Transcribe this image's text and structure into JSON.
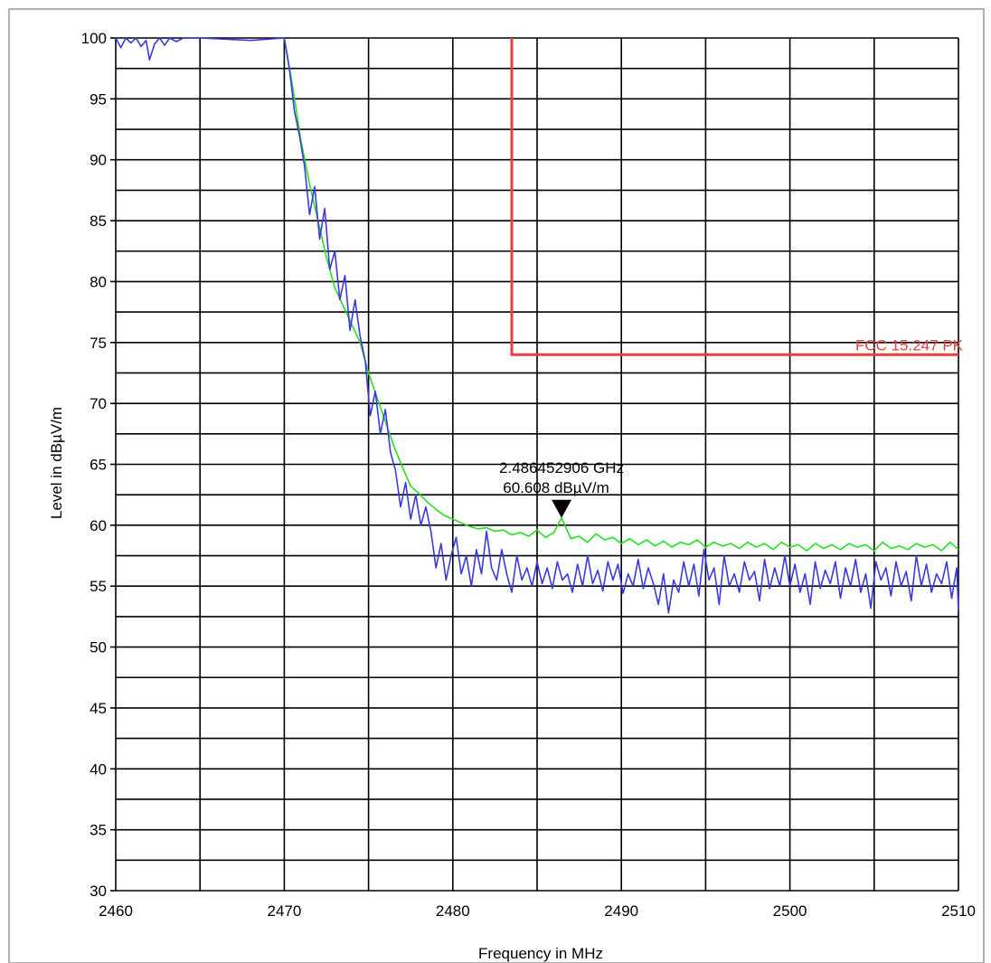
{
  "chart_data": {
    "type": "line",
    "xlabel": "Frequency in MHz",
    "ylabel": "Level in dBµV/m",
    "xlim": [
      2460,
      2510
    ],
    "ylim": [
      30,
      100
    ],
    "x_ticks": [
      2460,
      2470,
      2480,
      2490,
      2500,
      2510
    ],
    "y_ticks": [
      30,
      35,
      40,
      45,
      50,
      55,
      60,
      65,
      70,
      75,
      80,
      85,
      90,
      95,
      100
    ],
    "grid": true,
    "limit_line": {
      "label": "FCC 15.247 PK",
      "color": "#e8403c",
      "points": [
        [
          2483.5,
          100
        ],
        [
          2483.5,
          74
        ],
        [
          2510,
          74
        ]
      ]
    },
    "marker": {
      "frequency_text": "2.486452906 GHz",
      "level_text": "60.608 dBµV/m",
      "x": 2486.45,
      "y": 60.6
    },
    "series": [
      {
        "color": "#22e022",
        "points": [
          [
            2470.0,
            100
          ],
          [
            2470.5,
            96
          ],
          [
            2471.0,
            91.5
          ],
          [
            2471.5,
            88
          ],
          [
            2472.0,
            85
          ],
          [
            2472.5,
            82
          ],
          [
            2473.0,
            79.5
          ],
          [
            2473.5,
            78
          ],
          [
            2474.0,
            76.5
          ],
          [
            2474.5,
            75
          ],
          [
            2475.0,
            72.5
          ],
          [
            2475.5,
            70.5
          ],
          [
            2476.0,
            68.5
          ],
          [
            2476.5,
            66.5
          ],
          [
            2477.0,
            64.8
          ],
          [
            2477.5,
            63.2
          ],
          [
            2478.0,
            62.6
          ],
          [
            2478.5,
            61.9
          ],
          [
            2479.0,
            61.3
          ],
          [
            2479.5,
            60.8
          ],
          [
            2480.0,
            60.5
          ],
          [
            2480.5,
            60.2
          ],
          [
            2481.0,
            59.9
          ],
          [
            2481.5,
            59.7
          ],
          [
            2482.0,
            59.8
          ],
          [
            2482.5,
            59.5
          ],
          [
            2483.0,
            59.6
          ],
          [
            2483.5,
            59.2
          ],
          [
            2484.0,
            59.4
          ],
          [
            2484.5,
            59.1
          ],
          [
            2485.0,
            59.6
          ],
          [
            2485.5,
            59.0
          ],
          [
            2486.0,
            59.4
          ],
          [
            2486.45,
            60.6
          ],
          [
            2487.0,
            58.9
          ],
          [
            2487.5,
            59.1
          ],
          [
            2488.0,
            58.6
          ],
          [
            2488.5,
            59.3
          ],
          [
            2489.0,
            58.8
          ],
          [
            2489.5,
            59.0
          ],
          [
            2490.0,
            58.5
          ],
          [
            2490.5,
            58.9
          ],
          [
            2491.0,
            58.4
          ],
          [
            2491.5,
            58.8
          ],
          [
            2492.0,
            58.3
          ],
          [
            2492.5,
            58.7
          ],
          [
            2493.0,
            58.2
          ],
          [
            2493.5,
            58.6
          ],
          [
            2494.0,
            58.4
          ],
          [
            2494.5,
            58.8
          ],
          [
            2495.0,
            58.2
          ],
          [
            2495.5,
            58.6
          ],
          [
            2496.0,
            58.3
          ],
          [
            2496.5,
            58.5
          ],
          [
            2497.0,
            58.1
          ],
          [
            2497.5,
            58.6
          ],
          [
            2498.0,
            58.2
          ],
          [
            2498.5,
            58.5
          ],
          [
            2499.0,
            58.0
          ],
          [
            2499.5,
            58.6
          ],
          [
            2500.0,
            58.2
          ],
          [
            2500.5,
            58.4
          ],
          [
            2501.0,
            57.9
          ],
          [
            2501.5,
            58.5
          ],
          [
            2502.0,
            58.1
          ],
          [
            2502.5,
            58.4
          ],
          [
            2503.0,
            58.0
          ],
          [
            2503.5,
            58.5
          ],
          [
            2504.0,
            58.2
          ],
          [
            2504.5,
            58.4
          ],
          [
            2505.0,
            57.9
          ],
          [
            2505.5,
            58.6
          ],
          [
            2506.0,
            58.1
          ],
          [
            2506.5,
            58.3
          ],
          [
            2507.0,
            58.0
          ],
          [
            2507.5,
            58.5
          ],
          [
            2508.0,
            58.2
          ],
          [
            2508.5,
            58.4
          ],
          [
            2509.0,
            57.9
          ],
          [
            2509.5,
            58.6
          ],
          [
            2510.0,
            58.0
          ]
        ]
      },
      {
        "color": "#3a3adc",
        "points": [
          [
            2460.0,
            100
          ],
          [
            2460.3,
            99.2
          ],
          [
            2460.6,
            100
          ],
          [
            2460.9,
            99.6
          ],
          [
            2461.2,
            100
          ],
          [
            2461.5,
            99.3
          ],
          [
            2461.8,
            99.8
          ],
          [
            2462.0,
            98.2
          ],
          [
            2462.3,
            99.5
          ],
          [
            2462.6,
            100
          ],
          [
            2462.9,
            99.4
          ],
          [
            2463.2,
            100
          ],
          [
            2463.6,
            99.7
          ],
          [
            2464.0,
            100
          ],
          [
            2465.0,
            100
          ],
          [
            2468.0,
            99.8
          ],
          [
            2470.0,
            100
          ],
          [
            2470.3,
            97.5
          ],
          [
            2470.6,
            94
          ],
          [
            2470.9,
            92
          ],
          [
            2471.2,
            89.5
          ],
          [
            2471.5,
            85.5
          ],
          [
            2471.8,
            87.8
          ],
          [
            2472.1,
            83.5
          ],
          [
            2472.4,
            86
          ],
          [
            2472.7,
            81
          ],
          [
            2473.0,
            82.5
          ],
          [
            2473.3,
            78.5
          ],
          [
            2473.6,
            80.5
          ],
          [
            2473.9,
            76
          ],
          [
            2474.2,
            78.5
          ],
          [
            2474.5,
            75.5
          ],
          [
            2474.8,
            73.5
          ],
          [
            2475.1,
            69
          ],
          [
            2475.4,
            71
          ],
          [
            2475.7,
            67.5
          ],
          [
            2476.0,
            69.5
          ],
          [
            2476.3,
            66
          ],
          [
            2476.6,
            64.5
          ],
          [
            2476.9,
            61.5
          ],
          [
            2477.2,
            63.5
          ],
          [
            2477.5,
            60.5
          ],
          [
            2477.8,
            62.5
          ],
          [
            2478.1,
            60
          ],
          [
            2478.4,
            61.5
          ],
          [
            2478.7,
            59.5
          ],
          [
            2479.0,
            56.5
          ],
          [
            2479.3,
            58.5
          ],
          [
            2479.6,
            55.5
          ],
          [
            2479.9,
            57.5
          ],
          [
            2480.2,
            59
          ],
          [
            2480.5,
            56
          ],
          [
            2480.8,
            57.5
          ],
          [
            2481.1,
            55
          ],
          [
            2481.4,
            58
          ],
          [
            2481.7,
            56
          ],
          [
            2482.0,
            59.5
          ],
          [
            2482.3,
            56.5
          ],
          [
            2482.6,
            55.5
          ],
          [
            2482.9,
            58
          ],
          [
            2483.2,
            56
          ],
          [
            2483.5,
            54.5
          ],
          [
            2483.8,
            57.5
          ],
          [
            2484.1,
            55.5
          ],
          [
            2484.4,
            56.5
          ],
          [
            2484.7,
            55
          ],
          [
            2485.0,
            57
          ],
          [
            2485.3,
            55.2
          ],
          [
            2485.6,
            56.5
          ],
          [
            2485.9,
            54.8
          ],
          [
            2486.2,
            57
          ],
          [
            2486.5,
            55.5
          ],
          [
            2486.8,
            56
          ],
          [
            2487.1,
            54.5
          ],
          [
            2487.4,
            56.8
          ],
          [
            2487.7,
            55
          ],
          [
            2488.0,
            57.5
          ],
          [
            2488.3,
            55.2
          ],
          [
            2488.6,
            56.3
          ],
          [
            2488.9,
            54.6
          ],
          [
            2489.2,
            57
          ],
          [
            2489.5,
            55.5
          ],
          [
            2489.8,
            56.8
          ],
          [
            2490.1,
            54.4
          ],
          [
            2490.4,
            56
          ],
          [
            2490.7,
            55
          ],
          [
            2491.0,
            57.2
          ],
          [
            2491.3,
            54.8
          ],
          [
            2491.6,
            56.5
          ],
          [
            2491.9,
            55.2
          ],
          [
            2492.2,
            53.5
          ],
          [
            2492.5,
            56
          ],
          [
            2492.8,
            52.8
          ],
          [
            2493.1,
            55.5
          ],
          [
            2493.4,
            54.5
          ],
          [
            2493.7,
            57
          ],
          [
            2494.0,
            55
          ],
          [
            2494.3,
            56.8
          ],
          [
            2494.6,
            54.2
          ],
          [
            2494.9,
            58
          ],
          [
            2495.2,
            55.5
          ],
          [
            2495.5,
            56.5
          ],
          [
            2495.8,
            53.5
          ],
          [
            2496.1,
            57.5
          ],
          [
            2496.4,
            55
          ],
          [
            2496.7,
            56
          ],
          [
            2497.0,
            54.5
          ],
          [
            2497.3,
            57
          ],
          [
            2497.6,
            55.5
          ],
          [
            2497.9,
            56.2
          ],
          [
            2498.2,
            53.8
          ],
          [
            2498.5,
            57.2
          ],
          [
            2498.8,
            54.8
          ],
          [
            2499.1,
            56.5
          ],
          [
            2499.4,
            55
          ],
          [
            2499.7,
            57.5
          ],
          [
            2500.0,
            55
          ],
          [
            2500.3,
            56.8
          ],
          [
            2500.6,
            54.5
          ],
          [
            2500.9,
            56
          ],
          [
            2501.2,
            53.5
          ],
          [
            2501.5,
            57
          ],
          [
            2501.8,
            54.8
          ],
          [
            2502.1,
            56.3
          ],
          [
            2502.4,
            55.2
          ],
          [
            2502.7,
            57
          ],
          [
            2503.0,
            54
          ],
          [
            2503.3,
            56.5
          ],
          [
            2503.6,
            55
          ],
          [
            2503.9,
            57.2
          ],
          [
            2504.2,
            54.5
          ],
          [
            2504.5,
            56
          ],
          [
            2504.8,
            53.2
          ],
          [
            2505.1,
            57
          ],
          [
            2505.4,
            55.5
          ],
          [
            2505.7,
            56.5
          ],
          [
            2506.0,
            54.2
          ],
          [
            2506.3,
            57
          ],
          [
            2506.6,
            55
          ],
          [
            2506.9,
            56.2
          ],
          [
            2507.2,
            53.8
          ],
          [
            2507.5,
            57.5
          ],
          [
            2507.8,
            55
          ],
          [
            2508.1,
            56.8
          ],
          [
            2508.4,
            54.5
          ],
          [
            2508.7,
            56
          ],
          [
            2509.0,
            55.2
          ],
          [
            2509.3,
            57
          ],
          [
            2509.6,
            54
          ],
          [
            2509.9,
            56.5
          ],
          [
            2510.0,
            53
          ]
        ]
      }
    ]
  }
}
